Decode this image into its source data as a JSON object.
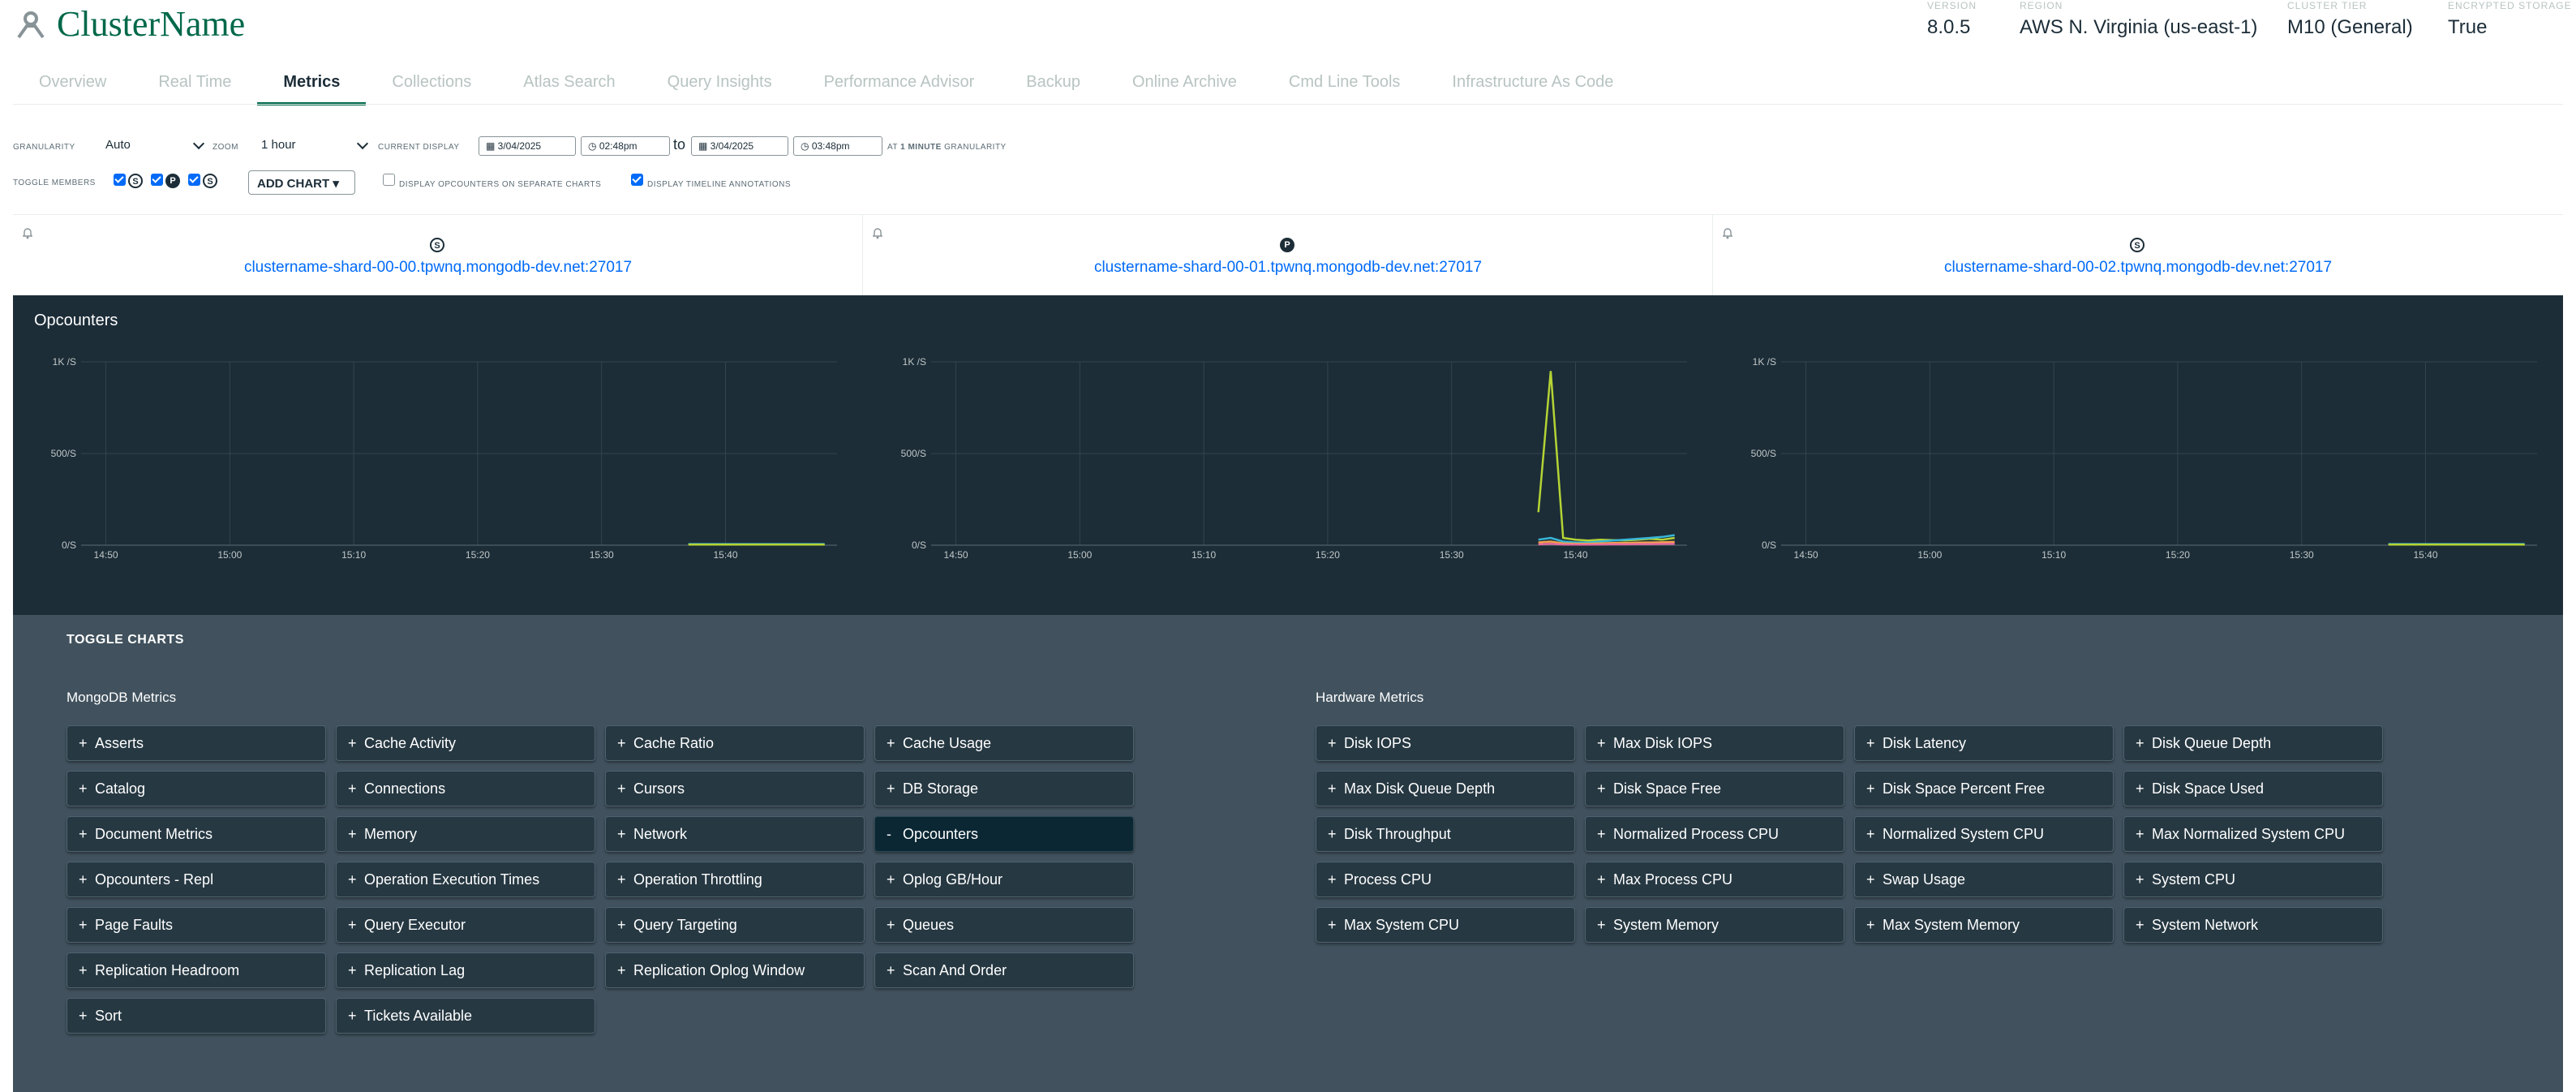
{
  "header": {
    "title": "ClusterName",
    "meta": [
      {
        "label": "VERSION",
        "value": "8.0.5"
      },
      {
        "label": "REGION",
        "value": "AWS N. Virginia (us-east-1)"
      },
      {
        "label": "CLUSTER TIER",
        "value": "M10 (General)"
      },
      {
        "label": "ENCRYPTED STORAGE",
        "value": "True"
      }
    ]
  },
  "tabs": [
    "Overview",
    "Real Time",
    "Metrics",
    "Collections",
    "Atlas Search",
    "Query Insights",
    "Performance Advisor",
    "Backup",
    "Online Archive",
    "Cmd Line Tools",
    "Infrastructure As Code"
  ],
  "active_tab": "Metrics",
  "controls": {
    "granularity_label": "GRANULARITY",
    "granularity_value": "Auto",
    "zoom_label": "ZOOM",
    "zoom_value": "1 hour",
    "current_display_label": "CURRENT DISPLAY",
    "start_date": "3/04/2025",
    "start_time": "02:48pm",
    "to_text": "to",
    "end_date": "3/04/2025",
    "end_time": "03:48pm",
    "at_text": "AT",
    "granularity_note_bold": "1 MINUTE",
    "granularity_note": "GRANULARITY",
    "toggle_members_label": "TOGGLE MEMBERS",
    "member_badges": [
      "S",
      "P",
      "S"
    ],
    "add_chart_label": "ADD CHART",
    "separate_charts_label": "DISPLAY OPCOUNTERS ON SEPARATE CHARTS",
    "separate_charts_checked": false,
    "timeline_label": "DISPLAY TIMELINE ANNOTATIONS",
    "timeline_checked": true
  },
  "hosts": [
    {
      "role": "S",
      "name": "clustername-shard-00-00.tpwnq.mongodb-dev.net:27017"
    },
    {
      "role": "P",
      "name": "clustername-shard-00-01.tpwnq.mongodb-dev.net:27017"
    },
    {
      "role": "S",
      "name": "clustername-shard-00-02.tpwnq.mongodb-dev.net:27017"
    }
  ],
  "charts_title": "Opcounters",
  "colors": {
    "accent_green": "#00684a",
    "link_blue": "#016bf8",
    "chart_bg": "#1c2d38",
    "toggle_bg": "#41525e",
    "series_lime": "#b5d334",
    "series_cyan": "#38b6d8",
    "series_orange": "#f2a34b",
    "series_pink": "#e86a9a"
  },
  "chart_data": [
    {
      "type": "line",
      "y_ticks": [
        "1K /S",
        "500/S",
        "0/S"
      ],
      "ylim": [
        0,
        1000
      ],
      "x_ticks": [
        "14:50",
        "15:00",
        "15:10",
        "15:20",
        "15:30",
        "15:40"
      ],
      "x_tick_minutes": [
        890,
        900,
        910,
        920,
        930,
        940
      ],
      "xlim_minutes": [
        888,
        949
      ],
      "series": [
        {
          "color": "#38b6d8",
          "x": [
            937,
            948
          ],
          "values": [
            6,
            6
          ]
        },
        {
          "color": "#b5d334",
          "x": [
            937,
            948
          ],
          "values": [
            3,
            3
          ]
        }
      ]
    },
    {
      "type": "line",
      "y_ticks": [
        "1K /S",
        "500/S",
        "0/S"
      ],
      "ylim": [
        0,
        1000
      ],
      "x_ticks": [
        "14:50",
        "15:00",
        "15:10",
        "15:20",
        "15:30",
        "15:40"
      ],
      "x_tick_minutes": [
        890,
        900,
        910,
        920,
        930,
        940
      ],
      "xlim_minutes": [
        888,
        949
      ],
      "series": [
        {
          "color": "#b5d334",
          "x": [
            937,
            938,
            939,
            940,
            941,
            942,
            943,
            944,
            945,
            946,
            947,
            948
          ],
          "values": [
            180,
            950,
            40,
            30,
            25,
            30,
            28,
            25,
            30,
            35,
            30,
            40
          ]
        },
        {
          "color": "#38b6d8",
          "x": [
            937,
            938,
            939,
            940,
            941,
            942,
            943,
            944,
            945,
            946,
            947,
            948
          ],
          "values": [
            30,
            40,
            20,
            15,
            15,
            20,
            25,
            30,
            35,
            40,
            45,
            55
          ]
        },
        {
          "color": "#f2a34b",
          "x": [
            937,
            938,
            939,
            940,
            941,
            942,
            943,
            944,
            945,
            946,
            947,
            948
          ],
          "values": [
            15,
            20,
            10,
            8,
            8,
            10,
            12,
            12,
            14,
            15,
            16,
            18
          ]
        },
        {
          "color": "#e86a9a",
          "x": [
            937,
            938,
            939,
            940,
            941,
            942,
            943,
            944,
            945,
            946,
            947,
            948
          ],
          "values": [
            5,
            8,
            4,
            3,
            3,
            4,
            5,
            5,
            6,
            6,
            7,
            8
          ]
        }
      ]
    },
    {
      "type": "line",
      "y_ticks": [
        "1K /S",
        "500/S",
        "0/S"
      ],
      "ylim": [
        0,
        1000
      ],
      "x_ticks": [
        "14:50",
        "15:00",
        "15:10",
        "15:20",
        "15:30",
        "15:40"
      ],
      "x_tick_minutes": [
        890,
        900,
        910,
        920,
        930,
        940
      ],
      "xlim_minutes": [
        888,
        949
      ],
      "series": [
        {
          "color": "#38b6d8",
          "x": [
            937,
            948
          ],
          "values": [
            6,
            6
          ]
        },
        {
          "color": "#b5d334",
          "x": [
            937,
            948
          ],
          "values": [
            3,
            3
          ]
        }
      ]
    }
  ],
  "toggle_charts": {
    "title": "TOGGLE CHARTS",
    "groups": [
      {
        "title": "MongoDB Metrics",
        "items": [
          {
            "label": "Asserts",
            "active": false
          },
          {
            "label": "Cache Activity",
            "active": false
          },
          {
            "label": "Cache Ratio",
            "active": false
          },
          {
            "label": "Cache Usage",
            "active": false
          },
          {
            "label": "Catalog",
            "active": false
          },
          {
            "label": "Connections",
            "active": false
          },
          {
            "label": "Cursors",
            "active": false
          },
          {
            "label": "DB Storage",
            "active": false
          },
          {
            "label": "Document Metrics",
            "active": false
          },
          {
            "label": "Memory",
            "active": false
          },
          {
            "label": "Network",
            "active": false
          },
          {
            "label": "Opcounters",
            "active": true
          },
          {
            "label": "Opcounters - Repl",
            "active": false
          },
          {
            "label": "Operation Execution Times",
            "active": false
          },
          {
            "label": "Operation Throttling",
            "active": false
          },
          {
            "label": "Oplog GB/Hour",
            "active": false
          },
          {
            "label": "Page Faults",
            "active": false
          },
          {
            "label": "Query Executor",
            "active": false
          },
          {
            "label": "Query Targeting",
            "active": false
          },
          {
            "label": "Queues",
            "active": false
          },
          {
            "label": "Replication Headroom",
            "active": false
          },
          {
            "label": "Replication Lag",
            "active": false
          },
          {
            "label": "Replication Oplog Window",
            "active": false
          },
          {
            "label": "Scan And Order",
            "active": false
          },
          {
            "label": "Sort",
            "active": false
          },
          {
            "label": "Tickets Available",
            "active": false
          }
        ]
      },
      {
        "title": "Hardware Metrics",
        "items": [
          {
            "label": "Disk IOPS",
            "active": false
          },
          {
            "label": "Max Disk IOPS",
            "active": false
          },
          {
            "label": "Disk Latency",
            "active": false
          },
          {
            "label": "Disk Queue Depth",
            "active": false
          },
          {
            "label": "Max Disk Queue Depth",
            "active": false
          },
          {
            "label": "Disk Space Free",
            "active": false
          },
          {
            "label": "Disk Space Percent Free",
            "active": false
          },
          {
            "label": "Disk Space Used",
            "active": false
          },
          {
            "label": "Disk Throughput",
            "active": false
          },
          {
            "label": "Normalized Process CPU",
            "active": false
          },
          {
            "label": "Normalized System CPU",
            "active": false
          },
          {
            "label": "Max Normalized System CPU",
            "active": false
          },
          {
            "label": "Process CPU",
            "active": false
          },
          {
            "label": "Max Process CPU",
            "active": false
          },
          {
            "label": "Swap Usage",
            "active": false
          },
          {
            "label": "System CPU",
            "active": false
          },
          {
            "label": "Max System CPU",
            "active": false
          },
          {
            "label": "System Memory",
            "active": false
          },
          {
            "label": "Max System Memory",
            "active": false
          },
          {
            "label": "System Network",
            "active": false
          }
        ]
      }
    ]
  }
}
